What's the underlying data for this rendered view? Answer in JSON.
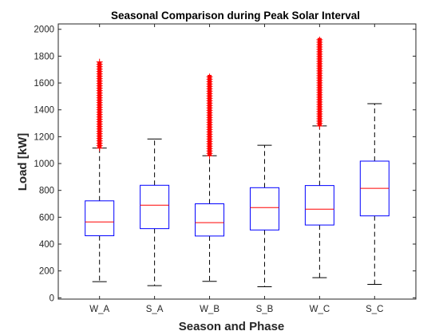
{
  "chart_data": {
    "type": "box",
    "title": "Seasonal Comparison during Peak Solar Interval",
    "xlabel": "Season and Phase",
    "ylabel": "Load [kW]",
    "ylim": [
      -10,
      2040
    ],
    "yticks": [
      0,
      200,
      400,
      600,
      800,
      1000,
      1200,
      1400,
      1600,
      1800,
      2000
    ],
    "grid": false,
    "categories": [
      "W_A",
      "S_A",
      "W_B",
      "S_B",
      "W_C",
      "S_C"
    ],
    "boxes": [
      {
        "category": "W_A",
        "whisker_low": 120,
        "q1": 462,
        "median": 565,
        "q3": 722,
        "whisker_high": 1115,
        "outlier_min": 1115,
        "outlier_max": 1760
      },
      {
        "category": "S_A",
        "whisker_low": 90,
        "q1": 515,
        "median": 690,
        "q3": 838,
        "whisker_high": 1183,
        "outlier_min": null,
        "outlier_max": null
      },
      {
        "category": "W_B",
        "whisker_low": 122,
        "q1": 460,
        "median": 560,
        "q3": 700,
        "whisker_high": 1058,
        "outlier_min": 1058,
        "outlier_max": 1660
      },
      {
        "category": "S_B",
        "whisker_low": 82,
        "q1": 505,
        "median": 672,
        "q3": 820,
        "whisker_high": 1136,
        "outlier_min": null,
        "outlier_max": null
      },
      {
        "category": "W_C",
        "whisker_low": 150,
        "q1": 542,
        "median": 660,
        "q3": 836,
        "whisker_high": 1280,
        "outlier_min": 1280,
        "outlier_max": 1935
      },
      {
        "category": "S_C",
        "whisker_low": 100,
        "q1": 610,
        "median": 815,
        "q3": 1018,
        "whisker_high": 1446,
        "outlier_min": null,
        "outlier_max": null
      }
    ],
    "colors": {
      "box": "#0000ff",
      "median": "#ff0000",
      "whisker": "#000000",
      "outlier": "#ff0000",
      "axes": "#262626"
    }
  }
}
